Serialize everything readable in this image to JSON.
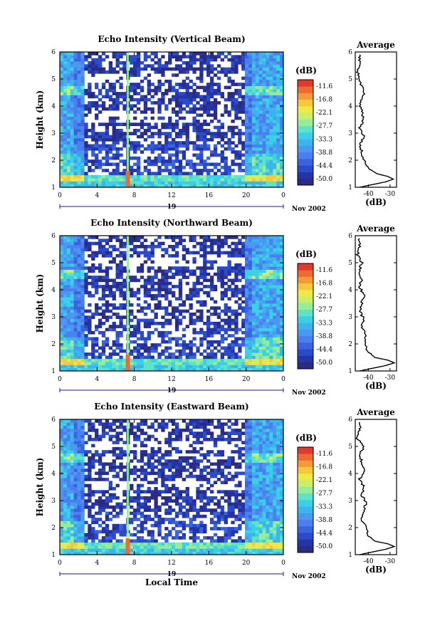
{
  "figure": {
    "shared_x_label": "Local Time",
    "month_label": "Nov 2002",
    "day_label": "19",
    "average_title": "Average",
    "colorbar_unit": "(dB)",
    "average_xlabel": "(dB)"
  },
  "colorbar": {
    "ticks": [
      "-11.6",
      "-16.8",
      "-22.1",
      "-27.7",
      "-33.3",
      "-38.8",
      "-44.4",
      "-50.0"
    ],
    "colors": [
      "#2b2b80",
      "#2535a8",
      "#2a4ccc",
      "#3a63e0",
      "#4b7fef",
      "#4a98f2",
      "#3cb4ee",
      "#3bd0e6",
      "#5fe3c8",
      "#97ec98",
      "#c9ef6a",
      "#efe845",
      "#f7c83c",
      "#f59a38",
      "#ef6a33",
      "#e4382c"
    ]
  },
  "chart_data": [
    {
      "type": "heatmap",
      "title": "Echo Intensity (Vertical Beam)",
      "xlabel": "",
      "ylabel": "Height (km)",
      "xlim": [
        0,
        24
      ],
      "ylim": [
        1,
        6
      ],
      "x_ticks": [
        "0",
        "4",
        "8",
        "12",
        "16",
        "20",
        "0"
      ],
      "y_ticks": [
        "1",
        "2",
        "3",
        "4",
        "5",
        "6"
      ],
      "colorbar_range_db": [
        -50.0,
        -11.6
      ],
      "bright_spike_hours": [
        7.3
      ],
      "average_profile": {
        "title": "Average",
        "xlabel": "(dB)",
        "x_ticks": [
          "-40",
          "-30"
        ],
        "xlim": [
          -46,
          -27
        ],
        "height_km": [
          1.0,
          1.1,
          1.2,
          1.3,
          1.4,
          1.5,
          1.7,
          2.0,
          2.3,
          2.6,
          2.9,
          3.2,
          3.5,
          3.8,
          4.1,
          4.4,
          4.7,
          5.0,
          5.3,
          5.6,
          5.9
        ],
        "db": [
          -44,
          -38,
          -32,
          -28.5,
          -31,
          -36,
          -40,
          -42,
          -43,
          -44,
          -42,
          -44,
          -42,
          -43,
          -44,
          -42,
          -43,
          -44,
          -45,
          -44,
          -44
        ]
      }
    },
    {
      "type": "heatmap",
      "title": "Echo Intensity (Northward Beam)",
      "xlabel": "",
      "ylabel": "Height (km)",
      "xlim": [
        0,
        24
      ],
      "ylim": [
        1,
        6
      ],
      "x_ticks": [
        "0",
        "4",
        "8",
        "12",
        "16",
        "20",
        "0"
      ],
      "y_ticks": [
        "1",
        "2",
        "3",
        "4",
        "5",
        "6"
      ],
      "colorbar_range_db": [
        -50.0,
        -11.6
      ],
      "bright_spike_hours": [
        7.3
      ],
      "average_profile": {
        "title": "Average",
        "xlabel": "(dB)",
        "x_ticks": [
          "-40",
          "-30"
        ],
        "xlim": [
          -46,
          -27
        ],
        "height_km": [
          1.0,
          1.1,
          1.2,
          1.3,
          1.4,
          1.5,
          1.7,
          2.0,
          2.3,
          2.6,
          2.9,
          3.2,
          3.5,
          3.8,
          4.1,
          4.4,
          4.7,
          5.0,
          5.3,
          5.6,
          5.9
        ],
        "db": [
          -44,
          -38,
          -32,
          -28,
          -31,
          -37,
          -40,
          -42,
          -41,
          -43,
          -42,
          -44,
          -43,
          -42,
          -44,
          -43,
          -44,
          -43,
          -45,
          -44,
          -44
        ]
      }
    },
    {
      "type": "heatmap",
      "title": "Echo Intensity (Eastward Beam)",
      "xlabel": "Local Time",
      "ylabel": "Height (km)",
      "xlim": [
        0,
        24
      ],
      "ylim": [
        1,
        6
      ],
      "x_ticks": [
        "0",
        "4",
        "8",
        "12",
        "16",
        "20",
        "0"
      ],
      "y_ticks": [
        "1",
        "2",
        "3",
        "4",
        "5",
        "6"
      ],
      "colorbar_range_db": [
        -50.0,
        -11.6
      ],
      "bright_spike_hours": [
        7.3
      ],
      "average_profile": {
        "title": "Average",
        "xlabel": "(dB)",
        "x_ticks": [
          "-40",
          "-30"
        ],
        "xlim": [
          -46,
          -27
        ],
        "height_km": [
          1.0,
          1.1,
          1.2,
          1.3,
          1.4,
          1.5,
          1.7,
          2.0,
          2.3,
          2.6,
          2.9,
          3.2,
          3.5,
          3.8,
          4.1,
          4.4,
          4.7,
          5.0,
          5.3,
          5.6,
          5.9
        ],
        "db": [
          -44,
          -38,
          -32,
          -28,
          -31,
          -37,
          -40,
          -41,
          -43,
          -42,
          -41,
          -43,
          -42,
          -44,
          -42,
          -43,
          -44,
          -42,
          -45,
          -44,
          -44
        ]
      }
    }
  ]
}
